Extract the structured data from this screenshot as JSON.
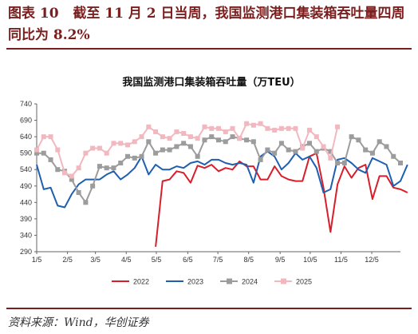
{
  "header": {
    "figure_title": "图表 10   截至 11 月 2 日当周，我国监测港口集装箱吞吐量四周同比为 8.2%"
  },
  "footer": {
    "source": "资料来源：Wind，华创证券"
  },
  "colors": {
    "accent": "#7b1e1e",
    "s2022": "#d81e2b",
    "s2023": "#1f5fb0",
    "s2024": "#9c9c9c",
    "s2025": "#f2b8c0"
  },
  "chart_data": {
    "type": "line",
    "title": "我国监测港口集装箱吞吐量（万TEU）",
    "xlabel": "",
    "ylabel": "",
    "xlim": [
      1,
      53
    ],
    "ylim": [
      290,
      740
    ],
    "yticks": [
      290,
      340,
      390,
      440,
      490,
      540,
      590,
      640,
      690,
      740
    ],
    "xticks": [
      {
        "label": "1/5",
        "week": 1
      },
      {
        "label": "2/5",
        "week": 5.4
      },
      {
        "label": "3/5",
        "week": 9.4
      },
      {
        "label": "4/5",
        "week": 13.8
      },
      {
        "label": "5/5",
        "week": 18.1
      },
      {
        "label": "6/5",
        "week": 22.6
      },
      {
        "label": "7/5",
        "week": 26.9
      },
      {
        "label": "8/5",
        "week": 31.3
      },
      {
        "label": "9/5",
        "week": 35.8
      },
      {
        "label": "10/5",
        "week": 40.1
      },
      {
        "label": "11/5",
        "week": 44.5
      },
      {
        "label": "12/5",
        "week": 48.9
      }
    ],
    "grid": false,
    "legend": "bottom",
    "series": [
      {
        "name": "2022",
        "color": "#d81e2b",
        "marker": "none",
        "start_week": 18,
        "values": [
          305,
          505,
          510,
          535,
          530,
          500,
          552,
          545,
          555,
          535,
          545,
          540,
          565,
          550,
          550,
          510,
          510,
          550,
          520,
          510,
          505,
          505,
          580,
          590,
          485,
          350,
          495,
          550,
          515,
          545,
          555,
          450,
          520,
          520,
          485,
          480,
          470
        ]
      },
      {
        "name": "2023",
        "color": "#1f5fb0",
        "marker": "none",
        "start_week": 1,
        "values": [
          555,
          480,
          485,
          430,
          425,
          465,
          495,
          510,
          510,
          510,
          525,
          535,
          510,
          525,
          545,
          580,
          525,
          555,
          540,
          540,
          550,
          545,
          560,
          565,
          555,
          570,
          570,
          560,
          555,
          560,
          555,
          500,
          580,
          595,
          580,
          540,
          560,
          590,
          570,
          580,
          545,
          470,
          480,
          570,
          575,
          560,
          540,
          530,
          575,
          565,
          555,
          490,
          505,
          555
        ]
      },
      {
        "name": "2024",
        "color": "#9c9c9c",
        "marker": "square",
        "start_week": 1,
        "values": [
          590,
          590,
          570,
          540,
          535,
          510,
          470,
          440,
          490,
          550,
          545,
          545,
          560,
          580,
          575,
          580,
          625,
          590,
          600,
          600,
          610,
          620,
          610,
          580,
          630,
          640,
          630,
          625,
          640,
          635,
          630,
          625,
          570,
          600,
          590,
          620,
          600,
          595,
          610,
          620,
          595,
          605,
          595,
          560,
          560,
          640,
          630,
          600,
          590,
          625,
          610,
          580,
          560
        ]
      },
      {
        "name": "2025",
        "color": "#f2b8c0",
        "marker": "square",
        "start_week": 1,
        "values": [
          600,
          640,
          640,
          600,
          530,
          520,
          545,
          590,
          605,
          605,
          590,
          620,
          620,
          615,
          625,
          640,
          670,
          655,
          640,
          635,
          655,
          650,
          640,
          635,
          670,
          665,
          665,
          655,
          665,
          635,
          680,
          675,
          680,
          665,
          660,
          665,
          665,
          665,
          605,
          660,
          640,
          610,
          575,
          670
        ]
      }
    ]
  }
}
